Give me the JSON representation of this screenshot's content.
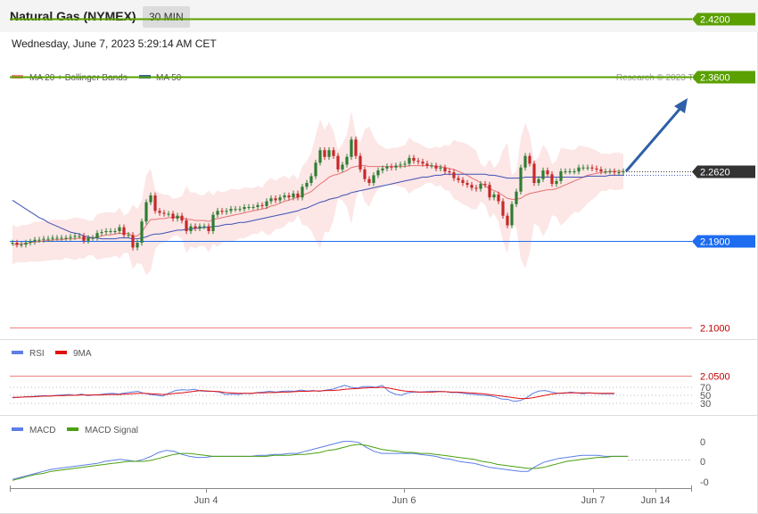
{
  "header": {
    "title": "Natural Gas (NYMEX)",
    "timeframe": "30 MIN"
  },
  "date": "Wednesday, June 7, 2023 5:29:14 AM CET",
  "copyright": "Research © 2023 Trading Central",
  "colors": {
    "bull_candle": "#2e7d32",
    "bear_candle": "#c62828",
    "bollinger_fill": "#fbdcdc",
    "ma20": "#e57373",
    "ma50": "#3f51b5",
    "resistance": "#5aa000",
    "pivot": "#1e6cf0",
    "support": "#f08080",
    "current": "#333333",
    "rsi": "#5c7ee6",
    "rsi_ma": "#e01010",
    "macd": "#5c7ee6",
    "macd_signal": "#4aa010",
    "arrow": "#2f5fa8"
  },
  "chart_data": [
    {
      "type": "candlestick",
      "legend": [
        {
          "name": "MA 20 + Bollinger Bands",
          "color": "#f08080"
        },
        {
          "name": "MA 50",
          "color": "#2f5fa8"
        }
      ],
      "levels": [
        {
          "value": 2.42,
          "label": "2.4200",
          "kind": "resistance"
        },
        {
          "value": 2.36,
          "label": "2.3600",
          "kind": "resistance"
        },
        {
          "value": 2.262,
          "label": "2.2620",
          "kind": "current"
        },
        {
          "value": 2.19,
          "label": "2.1900",
          "kind": "pivot"
        },
        {
          "value": 2.1,
          "label": "2.1000",
          "kind": "support"
        },
        {
          "value": 2.05,
          "label": "2.0500",
          "kind": "support"
        }
      ],
      "x_ticks": [
        "Jun 4",
        "Jun 6",
        "Jun 7",
        "Jun 14"
      ],
      "close": [
        2.188,
        2.186,
        2.186,
        2.188,
        2.189,
        2.191,
        2.191,
        2.192,
        2.192,
        2.193,
        2.193,
        2.193,
        2.193,
        2.194,
        2.195,
        2.195,
        2.19,
        2.193,
        2.193,
        2.198,
        2.199,
        2.2,
        2.2,
        2.2,
        2.204,
        2.196,
        2.196,
        2.183,
        2.188,
        2.21,
        2.23,
        2.237,
        2.221,
        2.219,
        2.218,
        2.218,
        2.213,
        2.216,
        2.211,
        2.2,
        2.205,
        2.203,
        2.205,
        2.205,
        2.2,
        2.217,
        2.221,
        2.22,
        2.221,
        2.223,
        2.223,
        2.223,
        2.225,
        2.225,
        2.225,
        2.227,
        2.226,
        2.231,
        2.234,
        2.232,
        2.235,
        2.237,
        2.235,
        2.239,
        2.235,
        2.246,
        2.25,
        2.257,
        2.271,
        2.284,
        2.277,
        2.284,
        2.278,
        2.264,
        2.269,
        2.277,
        2.295,
        2.278,
        2.264,
        2.254,
        2.25,
        2.258,
        2.263,
        2.265,
        2.267,
        2.266,
        2.268,
        2.269,
        2.27,
        2.276,
        2.273,
        2.272,
        2.27,
        2.268,
        2.268,
        2.265,
        2.266,
        2.262,
        2.261,
        2.255,
        2.253,
        2.25,
        2.248,
        2.245,
        2.244,
        2.249,
        2.248,
        2.235,
        2.238,
        2.231,
        2.216,
        2.206,
        2.228,
        2.241,
        2.266,
        2.278,
        2.27,
        2.25,
        2.254,
        2.263,
        2.259,
        2.249,
        2.252,
        2.262,
        2.262,
        2.262,
        2.262,
        2.266,
        2.266,
        2.266,
        2.265,
        2.264,
        2.262,
        2.262,
        2.262,
        2.261,
        2.261,
        2.262
      ],
      "ma20": [
        2.186,
        2.186,
        2.187,
        2.187,
        2.188,
        2.189,
        2.189,
        2.19,
        2.19,
        2.191,
        2.191,
        2.191,
        2.192,
        2.192,
        2.192,
        2.193,
        2.192,
        2.193,
        2.193,
        2.194,
        2.195,
        2.196,
        2.196,
        2.197,
        2.198,
        2.197,
        2.198,
        2.194,
        2.195,
        2.199,
        2.206,
        2.212,
        2.212,
        2.213,
        2.213,
        2.214,
        2.214,
        2.215,
        2.214,
        2.212,
        2.212,
        2.211,
        2.211,
        2.211,
        2.21,
        2.212,
        2.213,
        2.214,
        2.215,
        2.216,
        2.217,
        2.218,
        2.219,
        2.22,
        2.221,
        2.222,
        2.223,
        2.224,
        2.226,
        2.227,
        2.229,
        2.231,
        2.232,
        2.234,
        2.235,
        2.237,
        2.239,
        2.241,
        2.245,
        2.249,
        2.252,
        2.256,
        2.258,
        2.259,
        2.261,
        2.263,
        2.266,
        2.267,
        2.268,
        2.268,
        2.267,
        2.267,
        2.267,
        2.267,
        2.267,
        2.267,
        2.267,
        2.267,
        2.267,
        2.268,
        2.268,
        2.268,
        2.268,
        2.268,
        2.268,
        2.267,
        2.267,
        2.266,
        2.265,
        2.264,
        2.262,
        2.26,
        2.258,
        2.255,
        2.253,
        2.25,
        2.247,
        2.244,
        2.242,
        2.24,
        2.237,
        2.234,
        2.233,
        2.233,
        2.234,
        2.237,
        2.239,
        2.24,
        2.241,
        2.242,
        2.243,
        2.243,
        2.244,
        2.246,
        2.248,
        2.25,
        2.252,
        2.254,
        2.256,
        2.258,
        2.259,
        2.26,
        2.261,
        2.261,
        2.262,
        2.262,
        2.262,
        2.262
      ],
      "ma50": [
        2.232,
        2.229,
        2.226,
        2.223,
        2.22,
        2.217,
        2.214,
        2.212,
        2.209,
        2.207,
        2.205,
        2.203,
        2.201,
        2.199,
        2.198,
        2.197,
        2.195,
        2.194,
        2.193,
        2.193,
        2.192,
        2.192,
        2.192,
        2.192,
        2.193,
        2.193,
        2.193,
        2.192,
        2.192,
        2.193,
        2.194,
        2.196,
        2.197,
        2.197,
        2.198,
        2.199,
        2.2,
        2.201,
        2.201,
        2.202,
        2.202,
        2.203,
        2.203,
        2.204,
        2.204,
        2.205,
        2.205,
        2.206,
        2.207,
        2.207,
        2.208,
        2.209,
        2.209,
        2.21,
        2.211,
        2.212,
        2.213,
        2.214,
        2.215,
        2.216,
        2.217,
        2.218,
        2.219,
        2.22,
        2.221,
        2.223,
        2.224,
        2.226,
        2.228,
        2.23,
        2.231,
        2.233,
        2.234,
        2.235,
        2.237,
        2.238,
        2.24,
        2.241,
        2.242,
        2.243,
        2.244,
        2.245,
        2.246,
        2.247,
        2.248,
        2.249,
        2.25,
        2.251,
        2.252,
        2.253,
        2.254,
        2.255,
        2.256,
        2.256,
        2.257,
        2.258,
        2.258,
        2.259,
        2.259,
        2.259,
        2.259,
        2.259,
        2.259,
        2.259,
        2.259,
        2.259,
        2.259,
        2.258,
        2.258,
        2.257,
        2.256,
        2.255,
        2.255,
        2.255,
        2.255,
        2.256,
        2.256,
        2.256,
        2.256,
        2.256,
        2.256,
        2.256,
        2.256,
        2.256,
        2.256,
        2.256,
        2.256,
        2.256,
        2.256,
        2.257,
        2.257,
        2.257,
        2.257,
        2.257,
        2.258,
        2.258,
        2.258,
        2.258
      ]
    },
    {
      "type": "line",
      "legend": [
        {
          "name": "RSI",
          "color": "#5c7ee6"
        },
        {
          "name": "9MA",
          "color": "#e01010"
        }
      ],
      "y_ticks": [
        "70",
        "50",
        "30"
      ],
      "rsi": [
        44,
        45,
        46,
        47,
        48,
        49,
        48,
        50,
        51,
        52,
        50,
        53,
        49,
        51,
        52,
        54,
        55,
        53,
        56,
        58,
        60,
        55,
        52,
        50,
        48,
        56,
        62,
        64,
        63,
        65,
        61,
        60,
        60,
        58,
        52,
        53,
        52,
        55,
        54,
        57,
        58,
        60,
        58,
        60,
        61,
        60,
        63,
        61,
        62,
        60,
        63,
        65,
        70,
        75,
        70,
        68,
        72,
        72,
        70,
        75,
        60,
        53,
        50,
        56,
        58,
        58,
        59,
        60,
        60,
        59,
        57,
        57,
        55,
        53,
        52,
        50,
        49,
        46,
        41,
        40,
        35,
        37,
        44,
        55,
        61,
        62,
        58,
        55,
        55,
        58,
        56,
        54,
        56,
        55,
        54,
        54,
        54
      ],
      "rsi_ma": [
        45,
        45,
        46,
        46,
        47,
        48,
        48,
        49,
        49,
        50,
        50,
        51,
        51,
        51,
        51,
        52,
        52,
        52,
        53,
        54,
        55,
        55,
        54,
        53,
        52,
        53,
        55,
        56,
        58,
        60,
        62,
        61,
        60,
        59,
        57,
        56,
        55,
        55,
        55,
        56,
        56,
        57,
        57,
        58,
        58,
        59,
        60,
        60,
        61,
        61,
        62,
        62,
        63,
        65,
        66,
        67,
        68,
        69,
        69,
        70,
        68,
        65,
        62,
        60,
        59,
        58,
        58,
        58,
        59,
        59,
        58,
        58,
        57,
        56,
        55,
        54,
        52,
        50,
        48,
        46,
        44,
        42,
        42,
        44,
        47,
        50,
        53,
        55,
        56,
        56,
        56,
        56,
        56,
        55,
        55,
        55,
        55
      ]
    },
    {
      "type": "line",
      "legend": [
        {
          "name": "MACD",
          "color": "#5c7ee6"
        },
        {
          "name": "MACD Signal",
          "color": "#4aa010"
        }
      ],
      "y_ticks": [
        "0",
        "0",
        "-0"
      ],
      "macd": [
        -10,
        -8,
        -6,
        -4,
        -2,
        0,
        1,
        2,
        3,
        4,
        5,
        6,
        8,
        9,
        10,
        9,
        8,
        10,
        13,
        17,
        19,
        18,
        15,
        13,
        12,
        12,
        13,
        13,
        13,
        13,
        13,
        13,
        14,
        14,
        15,
        15,
        16,
        16,
        18,
        20,
        22,
        24,
        26,
        28,
        28,
        27,
        22,
        18,
        16,
        16,
        16,
        16,
        16,
        15,
        14,
        13,
        11,
        10,
        8,
        7,
        6,
        4,
        2,
        1,
        0,
        -1,
        -2,
        -2,
        3,
        7,
        9,
        11,
        12,
        13,
        14,
        14,
        14,
        13,
        13,
        13,
        13
      ],
      "signal": [
        -11,
        -9,
        -7,
        -5,
        -4,
        -2,
        -1,
        0,
        1,
        2,
        3,
        4,
        5,
        6,
        7,
        8,
        8,
        8,
        9,
        11,
        13,
        15,
        16,
        16,
        15,
        14,
        13,
        13,
        13,
        13,
        13,
        13,
        13,
        13,
        14,
        14,
        14,
        15,
        15,
        16,
        17,
        19,
        20,
        22,
        24,
        25,
        24,
        22,
        20,
        19,
        18,
        17,
        17,
        16,
        16,
        15,
        14,
        13,
        12,
        11,
        10,
        8,
        7,
        5,
        4,
        3,
        2,
        1,
        1,
        2,
        4,
        6,
        8,
        9,
        10,
        11,
        12,
        12,
        13,
        13,
        13
      ]
    }
  ]
}
